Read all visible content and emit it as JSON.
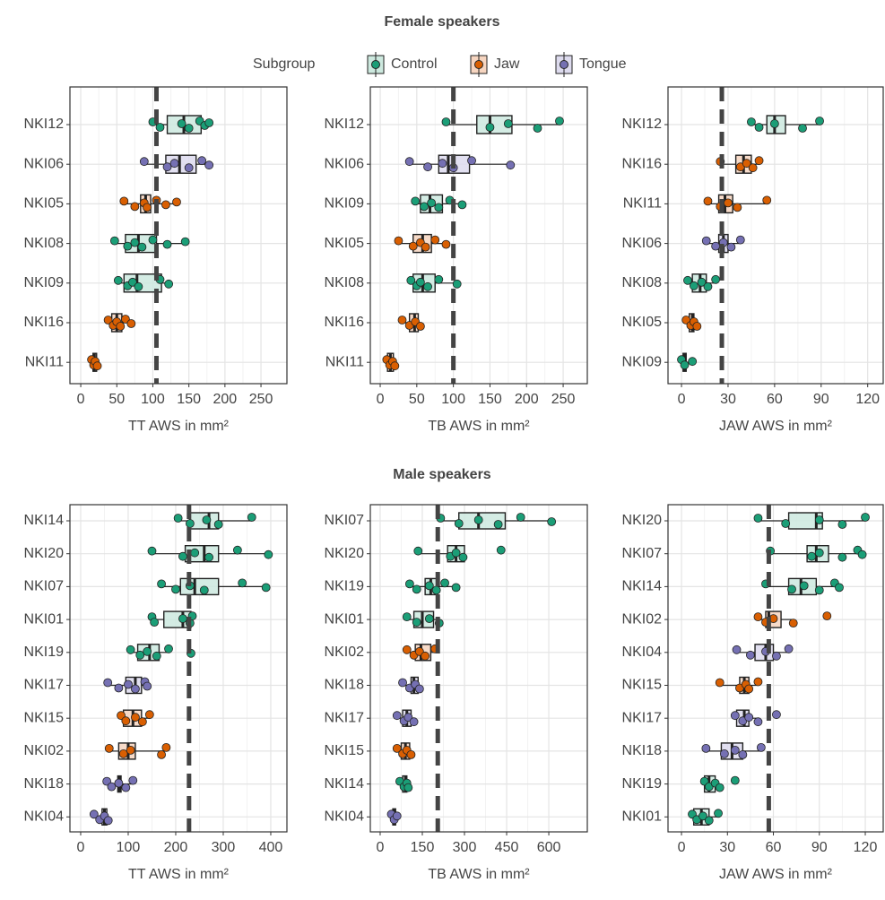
{
  "chart_data": [
    {
      "type": "boxplot",
      "title": "Female speakers",
      "legend": {
        "title": "Subgroup",
        "groups": [
          {
            "name": "Control",
            "color": "#1b9e77",
            "fill": "#cde9df"
          },
          {
            "name": "Jaw",
            "color": "#d95f02",
            "fill": "#f6d5c0"
          },
          {
            "name": "Tongue",
            "color": "#7570b3",
            "fill": "#dddbee"
          }
        ]
      },
      "xlabel": "TT AWS in mm²",
      "xlim": [
        -15,
        286
      ],
      "xticks": [
        0,
        50,
        100,
        150,
        200,
        250
      ],
      "reference_line": 105,
      "categories": [
        "NKI12",
        "NKI06",
        "NKI05",
        "NKI08",
        "NKI09",
        "NKI16",
        "NKI11"
      ],
      "boxes": [
        {
          "group": "Control",
          "stats": [
            100,
            120,
            143,
            167,
            178
          ],
          "points": [
            100,
            110,
            140,
            150,
            165,
            172,
            178
          ]
        },
        {
          "group": "Tongue",
          "stats": [
            88,
            118,
            137,
            160,
            178
          ],
          "points": [
            88,
            120,
            130,
            150,
            168,
            178
          ]
        },
        {
          "group": "Jaw",
          "stats": [
            60,
            83,
            90,
            97,
            133
          ],
          "points": [
            60,
            75,
            88,
            92,
            105,
            118,
            133
          ]
        },
        {
          "group": "Control",
          "stats": [
            47,
            62,
            80,
            105,
            145
          ],
          "points": [
            47,
            65,
            75,
            85,
            100,
            120,
            145
          ]
        },
        {
          "group": "Control",
          "stats": [
            52,
            60,
            78,
            112,
            122
          ],
          "points": [
            52,
            65,
            72,
            80,
            110,
            122
          ]
        },
        {
          "group": "Jaw",
          "stats": [
            38,
            43,
            50,
            57,
            70
          ],
          "points": [
            38,
            45,
            50,
            55,
            62,
            70
          ]
        },
        {
          "group": "Jaw",
          "stats": [
            14,
            17,
            19,
            22,
            24
          ],
          "points": [
            15,
            18,
            20,
            23
          ]
        }
      ]
    },
    {
      "type": "boxplot",
      "xlabel": "TB AWS in mm²",
      "xlim": [
        -13.5,
        283
      ],
      "xticks": [
        0,
        50,
        100,
        150,
        200,
        250
      ],
      "reference_line": 100,
      "categories": [
        "NKI12",
        "NKI06",
        "NKI09",
        "NKI05",
        "NKI08",
        "NKI16",
        "NKI11"
      ],
      "boxes": [
        {
          "group": "Control",
          "stats": [
            90,
            132,
            150,
            180,
            245
          ],
          "points": [
            90,
            150,
            175,
            215,
            245
          ]
        },
        {
          "group": "Tongue",
          "stats": [
            40,
            80,
            93,
            122,
            178
          ],
          "points": [
            40,
            65,
            85,
            100,
            125,
            178
          ]
        },
        {
          "group": "Control",
          "stats": [
            48,
            55,
            68,
            85,
            112
          ],
          "points": [
            48,
            60,
            70,
            80,
            95,
            112
          ]
        },
        {
          "group": "Jaw",
          "stats": [
            25,
            45,
            58,
            70,
            90
          ],
          "points": [
            25,
            45,
            55,
            62,
            75,
            90
          ]
        },
        {
          "group": "Control",
          "stats": [
            42,
            45,
            58,
            75,
            105
          ],
          "points": [
            42,
            50,
            55,
            65,
            80,
            105
          ]
        },
        {
          "group": "Jaw",
          "stats": [
            30,
            40,
            47,
            52,
            57
          ],
          "points": [
            30,
            40,
            48,
            55
          ]
        },
        {
          "group": "Jaw",
          "stats": [
            8,
            10,
            14,
            18,
            20
          ],
          "points": [
            9,
            13,
            17,
            20
          ]
        }
      ]
    },
    {
      "type": "boxplot",
      "xlabel": "JAW AWS in mm²",
      "xlim": [
        -8.7,
        130
      ],
      "xticks": [
        0,
        30,
        60,
        90,
        120
      ],
      "reference_line": 26,
      "categories": [
        "NKI12",
        "NKI16",
        "NKI11",
        "NKI06",
        "NKI08",
        "NKI05",
        "NKI09"
      ],
      "boxes": [
        {
          "group": "Control",
          "stats": [
            45,
            55,
            60,
            67,
            89
          ],
          "points": [
            45,
            50,
            60,
            78,
            89
          ]
        },
        {
          "group": "Jaw",
          "stats": [
            25,
            35,
            40,
            45,
            50
          ],
          "points": [
            25,
            38,
            42,
            46,
            50
          ]
        },
        {
          "group": "Jaw",
          "stats": [
            17,
            24,
            28,
            33,
            55
          ],
          "points": [
            17,
            25,
            30,
            36,
            55
          ]
        },
        {
          "group": "Tongue",
          "stats": [
            16,
            24,
            27,
            30,
            38
          ],
          "points": [
            16,
            22,
            27,
            32,
            38
          ]
        },
        {
          "group": "Control",
          "stats": [
            4,
            7,
            12,
            16,
            22
          ],
          "points": [
            4,
            8,
            13,
            17,
            22
          ]
        },
        {
          "group": "Jaw",
          "stats": [
            3,
            5,
            7,
            8,
            10
          ],
          "points": [
            3,
            6,
            8,
            10
          ]
        },
        {
          "group": "Control",
          "stats": [
            0,
            1,
            2,
            3,
            7
          ],
          "points": [
            0,
            2,
            7
          ]
        }
      ]
    },
    {
      "type": "boxplot",
      "title": "Male speakers",
      "xlabel": "TT AWS in mm²",
      "xlim": [
        -22.6,
        434
      ],
      "xticks": [
        0,
        100,
        200,
        300,
        400
      ],
      "reference_line": 228,
      "categories": [
        "NKI14",
        "NKI20",
        "NKI07",
        "NKI01",
        "NKI19",
        "NKI17",
        "NKI15",
        "NKI02",
        "NKI18",
        "NKI04"
      ],
      "boxes": [
        {
          "group": "Control",
          "stats": [
            205,
            230,
            270,
            290,
            360
          ],
          "points": [
            205,
            230,
            265,
            290,
            360
          ]
        },
        {
          "group": "Control",
          "stats": [
            150,
            220,
            260,
            290,
            395
          ],
          "points": [
            150,
            215,
            240,
            270,
            330,
            395
          ]
        },
        {
          "group": "Control",
          "stats": [
            170,
            210,
            240,
            290,
            390
          ],
          "points": [
            170,
            200,
            230,
            260,
            340,
            390
          ]
        },
        {
          "group": "Control",
          "stats": [
            150,
            175,
            215,
            232,
            235
          ],
          "points": [
            150,
            155,
            215,
            230,
            235
          ]
        },
        {
          "group": "Control",
          "stats": [
            100,
            120,
            145,
            165,
            185
          ],
          "points": [
            105,
            125,
            140,
            160,
            185,
            232
          ]
        },
        {
          "group": "Tongue",
          "stats": [
            57,
            95,
            115,
            128,
            140
          ],
          "points": [
            57,
            80,
            100,
            115,
            135,
            140
          ]
        },
        {
          "group": "Jaw",
          "stats": [
            85,
            90,
            110,
            128,
            145
          ],
          "points": [
            85,
            95,
            115,
            130,
            145
          ]
        },
        {
          "group": "Jaw",
          "stats": [
            60,
            80,
            100,
            115,
            175
          ],
          "points": [
            60,
            90,
            105,
            170,
            180
          ]
        },
        {
          "group": "Tongue",
          "stats": [
            55,
            78,
            82,
            85,
            110
          ],
          "points": [
            55,
            65,
            80,
            95,
            110
          ]
        },
        {
          "group": "Tongue",
          "stats": [
            28,
            45,
            50,
            55,
            60
          ],
          "points": [
            28,
            40,
            50,
            58
          ]
        }
      ]
    },
    {
      "type": "boxplot",
      "xlabel": "TB AWS in mm²",
      "xlim": [
        -35,
        737
      ],
      "xticks": [
        0,
        150,
        300,
        450,
        600
      ],
      "reference_line": 205,
      "categories": [
        "NKI07",
        "NKI20",
        "NKI19",
        "NKI01",
        "NKI02",
        "NKI18",
        "NKI17",
        "NKI15",
        "NKI14",
        "NKI04"
      ],
      "boxes": [
        {
          "group": "Control",
          "stats": [
            215,
            280,
            350,
            445,
            610
          ],
          "points": [
            215,
            280,
            350,
            420,
            500,
            610
          ]
        },
        {
          "group": "Control",
          "stats": [
            135,
            240,
            270,
            300,
            300
          ],
          "points": [
            135,
            250,
            270,
            295,
            430
          ]
        },
        {
          "group": "Control",
          "stats": [
            105,
            160,
            180,
            200,
            270
          ],
          "points": [
            105,
            130,
            175,
            200,
            230,
            270
          ]
        },
        {
          "group": "Control",
          "stats": [
            95,
            120,
            150,
            190,
            210
          ],
          "points": [
            95,
            130,
            175,
            210
          ]
        },
        {
          "group": "Jaw",
          "stats": [
            95,
            125,
            145,
            180,
            195
          ],
          "points": [
            95,
            120,
            140,
            160,
            195
          ]
        },
        {
          "group": "Tongue",
          "stats": [
            80,
            110,
            120,
            135,
            145
          ],
          "points": [
            80,
            105,
            125,
            140
          ]
        },
        {
          "group": "Tongue",
          "stats": [
            60,
            80,
            95,
            110,
            120
          ],
          "points": [
            60,
            85,
            100,
            120
          ]
        },
        {
          "group": "Jaw",
          "stats": [
            60,
            75,
            90,
            105,
            110
          ],
          "points": [
            60,
            80,
            95,
            110
          ]
        },
        {
          "group": "Control",
          "stats": [
            70,
            80,
            90,
            95,
            100
          ],
          "points": [
            70,
            85,
            95,
            100
          ]
        },
        {
          "group": "Tongue",
          "stats": [
            40,
            45,
            50,
            55,
            60
          ],
          "points": [
            40,
            50,
            60
          ]
        }
      ]
    },
    {
      "type": "boxplot",
      "xlabel": "JAW AWS in mm²",
      "xlim": [
        -8.8,
        131.7
      ],
      "xticks": [
        0,
        30,
        60,
        90,
        120
      ],
      "reference_line": 57,
      "categories": [
        "NKI20",
        "NKI07",
        "NKI14",
        "NKI02",
        "NKI04",
        "NKI15",
        "NKI17",
        "NKI18",
        "NKI19",
        "NKI01"
      ],
      "boxes": [
        {
          "group": "Control",
          "stats": [
            50,
            70,
            88,
            92,
            120
          ],
          "points": [
            50,
            68,
            90,
            105,
            120
          ]
        },
        {
          "group": "Control",
          "stats": [
            58,
            82,
            88,
            96,
            118
          ],
          "points": [
            58,
            85,
            90,
            105,
            115,
            118
          ]
        },
        {
          "group": "Control",
          "stats": [
            55,
            70,
            78,
            88,
            103
          ],
          "points": [
            55,
            72,
            80,
            90,
            100,
            103
          ]
        },
        {
          "group": "Jaw",
          "stats": [
            50,
            55,
            57,
            65,
            73
          ],
          "points": [
            50,
            55,
            60,
            73,
            95
          ]
        },
        {
          "group": "Tongue",
          "stats": [
            36,
            48,
            55,
            60,
            70
          ],
          "points": [
            36,
            45,
            55,
            62,
            70
          ]
        },
        {
          "group": "Jaw",
          "stats": [
            25,
            38,
            41,
            44,
            50
          ],
          "points": [
            25,
            38,
            42,
            44,
            50
          ]
        },
        {
          "group": "Tongue",
          "stats": [
            35,
            36,
            41,
            44,
            50
          ],
          "points": [
            35,
            40,
            44,
            50,
            62
          ]
        },
        {
          "group": "Tongue",
          "stats": [
            16,
            26,
            33,
            40,
            52
          ],
          "points": [
            16,
            28,
            35,
            40,
            52
          ]
        },
        {
          "group": "Control",
          "stats": [
            15,
            15,
            18,
            22,
            25
          ],
          "points": [
            15,
            18,
            22,
            25,
            35
          ]
        },
        {
          "group": "Control",
          "stats": [
            7,
            8,
            13,
            18,
            24
          ],
          "points": [
            7,
            10,
            14,
            18,
            24
          ]
        }
      ]
    }
  ]
}
